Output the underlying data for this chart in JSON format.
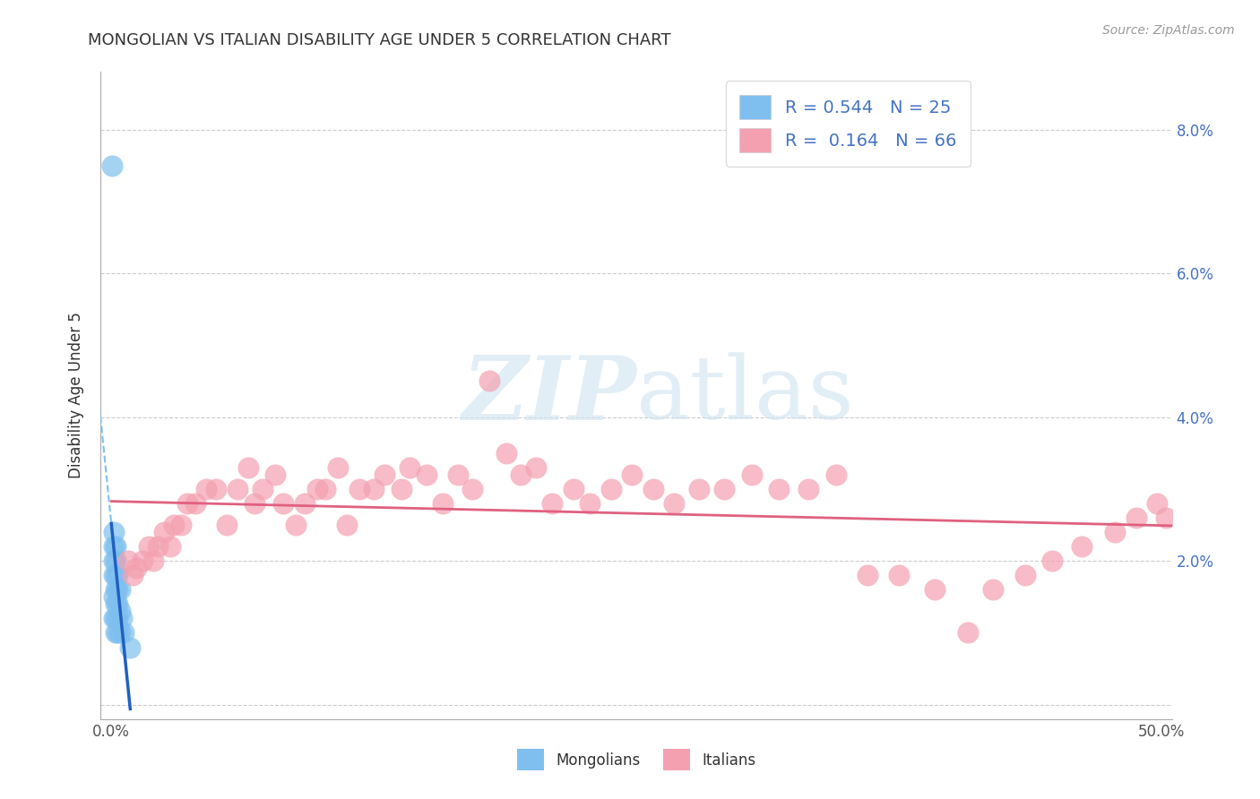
{
  "title": "MONGOLIAN VS ITALIAN DISABILITY AGE UNDER 5 CORRELATION CHART",
  "source": "Source: ZipAtlas.com",
  "ylabel": "Disability Age Under 5",
  "xlim": [
    -0.005,
    0.505
  ],
  "ylim": [
    -0.002,
    0.088
  ],
  "xtick_vals": [
    0.0,
    0.1,
    0.2,
    0.3,
    0.4,
    0.5
  ],
  "xtick_labels": [
    "0.0%",
    "",
    "",
    "",
    "",
    "50.0%"
  ],
  "ytick_vals": [
    0.0,
    0.02,
    0.04,
    0.06,
    0.08
  ],
  "ytick_labels_right": [
    "",
    "2.0%",
    "4.0%",
    "6.0%",
    "8.0%"
  ],
  "mongolian_color": "#7EBFEF",
  "italian_color": "#F4A0B0",
  "mongolian_line_color": "#2060C0",
  "italian_line_color": "#E06080",
  "background_color": "#ffffff",
  "watermark_color": "#d0e4f0",
  "mong_x": [
    0.0005,
    0.001,
    0.001,
    0.001,
    0.001,
    0.001,
    0.001,
    0.002,
    0.002,
    0.002,
    0.002,
    0.002,
    0.002,
    0.002,
    0.003,
    0.003,
    0.003,
    0.003,
    0.003,
    0.004,
    0.004,
    0.004,
    0.005,
    0.006,
    0.009
  ],
  "mong_y": [
    0.075,
    0.024,
    0.022,
    0.02,
    0.018,
    0.015,
    0.012,
    0.022,
    0.02,
    0.018,
    0.016,
    0.014,
    0.012,
    0.01,
    0.018,
    0.016,
    0.014,
    0.012,
    0.01,
    0.016,
    0.013,
    0.01,
    0.012,
    0.01,
    0.008
  ],
  "ital_x": [
    0.008,
    0.01,
    0.012,
    0.015,
    0.018,
    0.02,
    0.022,
    0.025,
    0.028,
    0.03,
    0.033,
    0.036,
    0.04,
    0.045,
    0.05,
    0.055,
    0.06,
    0.065,
    0.068,
    0.072,
    0.078,
    0.082,
    0.088,
    0.092,
    0.098,
    0.102,
    0.108,
    0.112,
    0.118,
    0.125,
    0.13,
    0.138,
    0.142,
    0.15,
    0.158,
    0.165,
    0.172,
    0.18,
    0.188,
    0.195,
    0.202,
    0.21,
    0.22,
    0.228,
    0.238,
    0.248,
    0.258,
    0.268,
    0.28,
    0.292,
    0.305,
    0.318,
    0.332,
    0.345,
    0.36,
    0.375,
    0.392,
    0.408,
    0.42,
    0.435,
    0.448,
    0.462,
    0.478,
    0.488,
    0.498,
    0.502
  ],
  "ital_y": [
    0.02,
    0.018,
    0.019,
    0.02,
    0.022,
    0.02,
    0.022,
    0.024,
    0.022,
    0.025,
    0.025,
    0.028,
    0.028,
    0.03,
    0.03,
    0.025,
    0.03,
    0.033,
    0.028,
    0.03,
    0.032,
    0.028,
    0.025,
    0.028,
    0.03,
    0.03,
    0.033,
    0.025,
    0.03,
    0.03,
    0.032,
    0.03,
    0.033,
    0.032,
    0.028,
    0.032,
    0.03,
    0.045,
    0.035,
    0.032,
    0.033,
    0.028,
    0.03,
    0.028,
    0.03,
    0.032,
    0.03,
    0.028,
    0.03,
    0.03,
    0.032,
    0.03,
    0.03,
    0.032,
    0.018,
    0.018,
    0.016,
    0.01,
    0.016,
    0.018,
    0.02,
    0.022,
    0.024,
    0.026,
    0.028,
    0.026
  ]
}
